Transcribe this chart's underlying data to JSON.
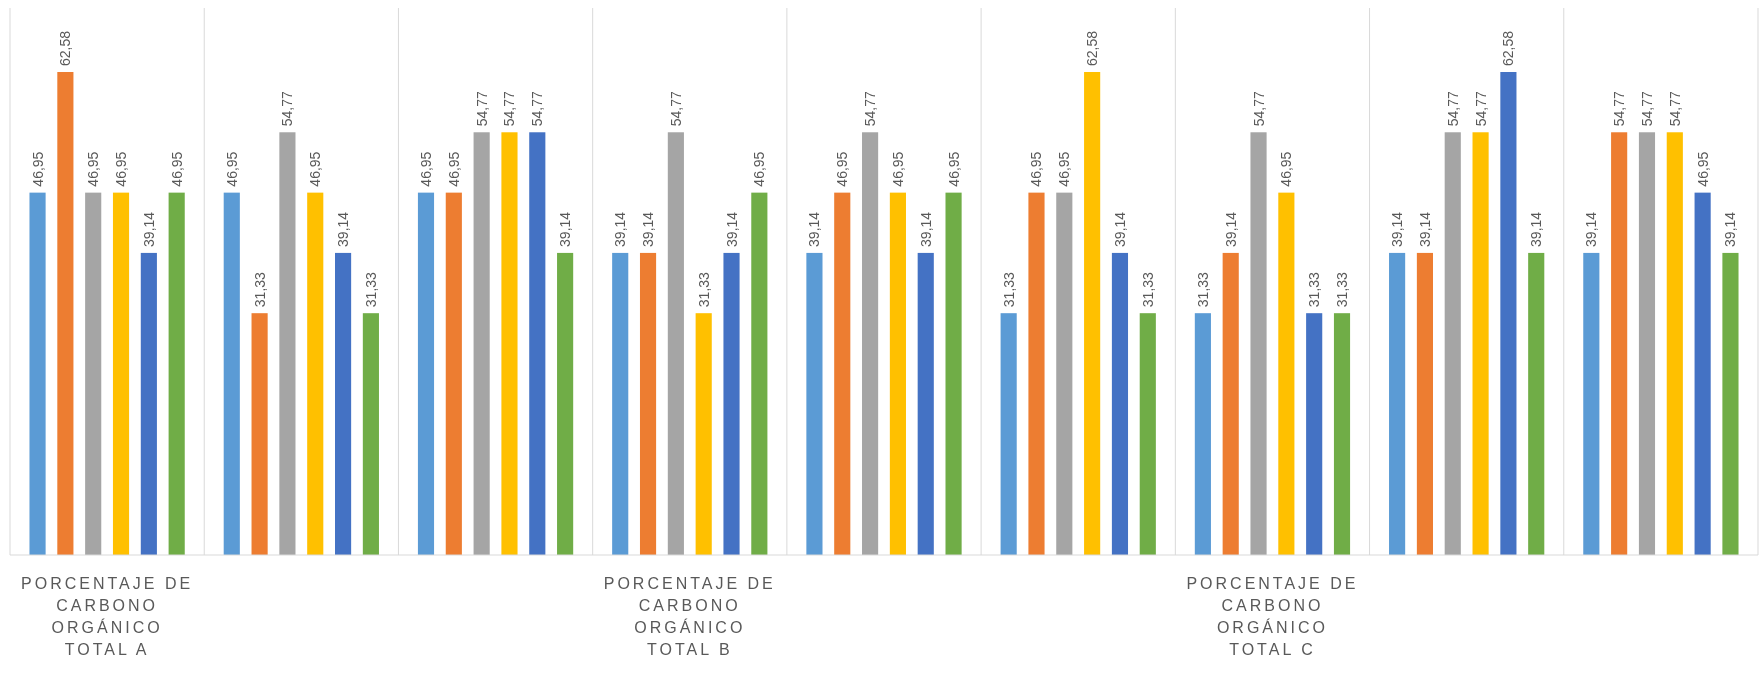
{
  "chart_data": {
    "type": "bar",
    "categories": [
      "PORCENTAJE DE CARBONO ORGÁNICO TOTAL A",
      null,
      null,
      "PORCENTAJE DE CARBONO ORGÁNICO TOTAL B",
      null,
      null,
      "PORCENTAJE DE CARBONO ORGÁNICO TOTAL C",
      null,
      null
    ],
    "series": [
      {
        "color": "#5b9bd5",
        "values": [
          46.95,
          46.95,
          46.95,
          39.14,
          39.14,
          31.33,
          31.33,
          39.14,
          39.14
        ],
        "value_labels": [
          "46,95",
          "46,95",
          "46,95",
          "39,14",
          "39,14",
          "31,33",
          "31,33",
          "39,14",
          "39,14"
        ]
      },
      {
        "color": "#ed7d31",
        "values": [
          62.58,
          31.33,
          46.95,
          39.14,
          46.95,
          46.95,
          39.14,
          39.14,
          54.77
        ],
        "value_labels": [
          "62,58",
          "31,33",
          "46,95",
          "39,14",
          "46,95",
          "46,95",
          "39,14",
          "39,14",
          "54,77"
        ]
      },
      {
        "color": "#a5a5a5",
        "values": [
          46.95,
          54.77,
          54.77,
          54.77,
          54.77,
          46.95,
          54.77,
          54.77,
          54.77
        ],
        "value_labels": [
          "46,95",
          "54,77",
          "54,77",
          "54,77",
          "54,77",
          "46,95",
          "54,77",
          "54,77",
          "54,77"
        ]
      },
      {
        "color": "#ffc000",
        "values": [
          46.95,
          46.95,
          54.77,
          31.33,
          46.95,
          62.58,
          46.95,
          54.77,
          54.77
        ],
        "value_labels": [
          "46,95",
          "46,95",
          "54,77",
          "31,33",
          "46,95",
          "62,58",
          "46,95",
          "54,77",
          "54,77"
        ]
      },
      {
        "color": "#4472c4",
        "values": [
          39.14,
          39.14,
          54.77,
          39.14,
          39.14,
          39.14,
          31.33,
          62.58,
          46.95
        ],
        "value_labels": [
          "39,14",
          "39,14",
          "54,77",
          "39,14",
          "39,14",
          "39,14",
          "31,33",
          "62,58",
          "46,95"
        ]
      },
      {
        "color": "#70ad47",
        "values": [
          46.95,
          31.33,
          39.14,
          46.95,
          46.95,
          31.33,
          31.33,
          39.14,
          39.14
        ],
        "value_labels": [
          "46,95",
          "31,33",
          "39,14",
          "46,95",
          "46,95",
          "31,33",
          "31,33",
          "39,14",
          "39,14"
        ]
      }
    ]
  }
}
